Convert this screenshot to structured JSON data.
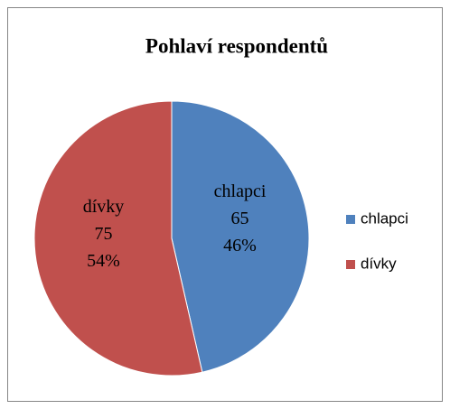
{
  "chart_data": {
    "type": "pie",
    "title": "Pohlaví respondentů",
    "categories": [
      "chlapci",
      "dívky"
    ],
    "values": [
      65,
      75
    ],
    "percent_labels": [
      "46%",
      "54%"
    ],
    "colors": [
      "#4f81bd",
      "#c0504d"
    ],
    "legend": "right"
  }
}
